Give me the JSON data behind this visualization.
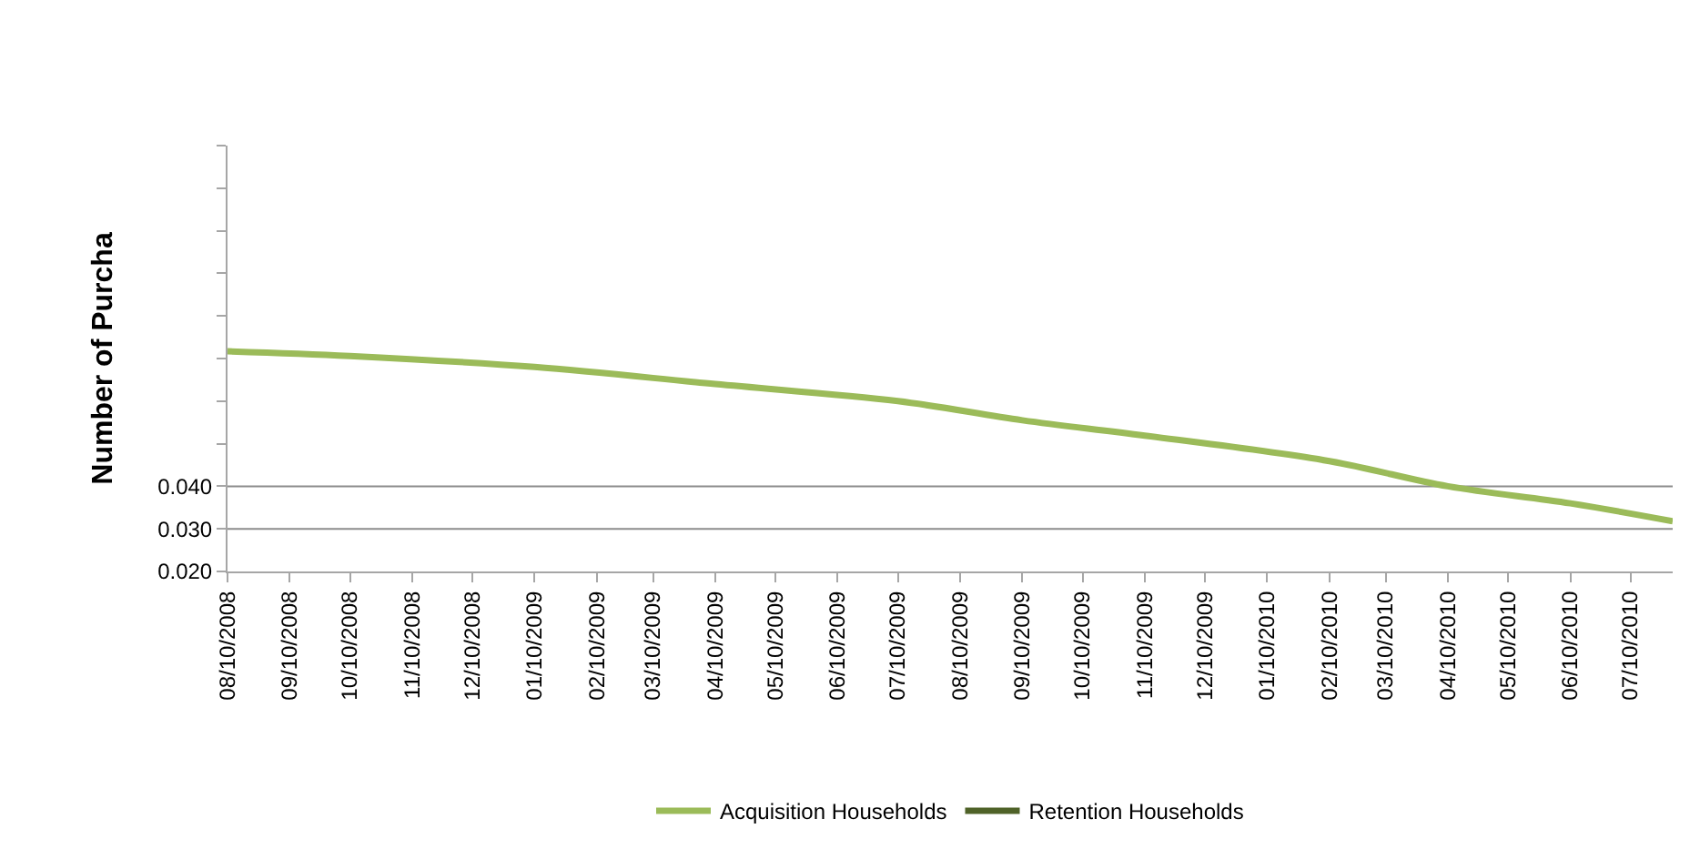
{
  "chart_data": {
    "type": "line",
    "ylabel": "Number of Purcha",
    "x": [
      "2008-08-10",
      "2008-10-10",
      "2009-01-10",
      "2009-04-10",
      "2009-07-10",
      "2009-09-10",
      "2009-11-10",
      "2010-02-10",
      "2010-04-10",
      "2010-06-10",
      "2010-07-31"
    ],
    "series": [
      {
        "name": "Acquisition Households",
        "color": "#9bbb59",
        "values": [
          0.0717,
          0.0706,
          0.068,
          0.064,
          0.06,
          0.0555,
          0.0519,
          0.0459,
          0.04,
          0.036,
          0.0318
        ]
      },
      {
        "name": "Retention Households",
        "color": "#4f6228",
        "values": [
          null,
          null,
          null,
          null,
          null,
          null,
          null,
          null,
          null,
          null,
          null
        ]
      }
    ],
    "xlim": [
      "2008-08-10",
      "2010-07-31"
    ],
    "xticks": [
      {
        "value": "2008-08-10",
        "label": "08/10/2008"
      },
      {
        "value": "2008-09-10",
        "label": "09/10/2008"
      },
      {
        "value": "2008-10-10",
        "label": "10/10/2008"
      },
      {
        "value": "2008-11-10",
        "label": "11/10/2008"
      },
      {
        "value": "2008-12-10",
        "label": "12/10/2008"
      },
      {
        "value": "2009-01-10",
        "label": "01/10/2009"
      },
      {
        "value": "2009-02-10",
        "label": "02/10/2009"
      },
      {
        "value": "2009-03-10",
        "label": "03/10/2009"
      },
      {
        "value": "2009-04-10",
        "label": "04/10/2009"
      },
      {
        "value": "2009-05-10",
        "label": "05/10/2009"
      },
      {
        "value": "2009-06-10",
        "label": "06/10/2009"
      },
      {
        "value": "2009-07-10",
        "label": "07/10/2009"
      },
      {
        "value": "2009-08-10",
        "label": "08/10/2009"
      },
      {
        "value": "2009-09-10",
        "label": "09/10/2009"
      },
      {
        "value": "2009-10-10",
        "label": "10/10/2009"
      },
      {
        "value": "2009-11-10",
        "label": "11/10/2009"
      },
      {
        "value": "2009-12-10",
        "label": "12/10/2009"
      },
      {
        "value": "2010-01-10",
        "label": "01/10/2010"
      },
      {
        "value": "2010-02-10",
        "label": "02/10/2010"
      },
      {
        "value": "2010-03-10",
        "label": "03/10/2010"
      },
      {
        "value": "2010-04-10",
        "label": "04/10/2010"
      },
      {
        "value": "2010-05-10",
        "label": "05/10/2010"
      },
      {
        "value": "2010-06-10",
        "label": "06/10/2010"
      },
      {
        "value": "2010-07-10",
        "label": "07/10/2010"
      }
    ],
    "ylim": [
      0.02,
      0.12
    ],
    "yticks": [
      {
        "value": 0.02,
        "label": "0.020"
      },
      {
        "value": 0.03,
        "label": "0.030"
      },
      {
        "value": 0.04,
        "label": "0.040"
      },
      {
        "value": 0.05,
        "label": null
      },
      {
        "value": 0.06,
        "label": null
      },
      {
        "value": 0.07,
        "label": null
      },
      {
        "value": 0.08,
        "label": null
      },
      {
        "value": 0.09,
        "label": null
      },
      {
        "value": 0.1,
        "label": null
      },
      {
        "value": 0.11,
        "label": null
      },
      {
        "value": 0.12,
        "label": null
      }
    ],
    "grid": "y",
    "legend": "bottom",
    "marker": "none",
    "line_style": "solid"
  }
}
